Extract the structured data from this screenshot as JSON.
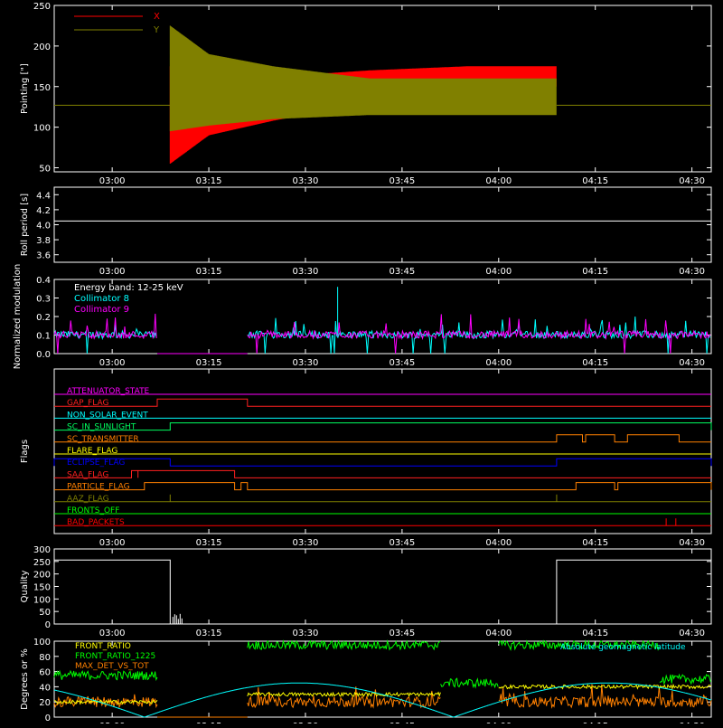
{
  "colors": {
    "background": "#000000",
    "axes": "#ffffff",
    "x_series": "#ff0000",
    "y_series": "#808000",
    "collimator8": "#00ffff",
    "collimator9": "#ff00ff",
    "front_ratio": "#ffff00",
    "front_ratio_1225": "#00ff00",
    "max_det_vs_tot": "#ff8000",
    "geomag": "#00ffff"
  },
  "time_ticks": [
    "03:00",
    "03:15",
    "03:30",
    "03:45",
    "04:00",
    "04:15",
    "04:30"
  ],
  "chart_data": [
    {
      "type": "line",
      "panel": "pointing",
      "ylabel": "Pointing [\"]",
      "ylim": [
        45,
        250
      ],
      "yticks": [
        "50",
        "100",
        "150",
        "200",
        "250"
      ],
      "legend": [
        "X",
        "Y"
      ],
      "x_range": [
        "02:51",
        "04:33"
      ],
      "series": [
        {
          "name": "X",
          "constant_before": 127,
          "start": "03:09",
          "end": "04:09",
          "envelope_low": [
            [
              9,
              55
            ],
            [
              15,
              90
            ],
            [
              25,
              108
            ],
            [
              40,
              130
            ],
            [
              55,
              148
            ],
            [
              69,
              150
            ]
          ],
          "envelope_high": [
            [
              9,
              175
            ],
            [
              15,
              165
            ],
            [
              25,
              162
            ],
            [
              40,
              170
            ],
            [
              55,
              175
            ],
            [
              69,
              175
            ]
          ]
        },
        {
          "name": "Y",
          "constant_before": 127,
          "start": "03:09",
          "end": "04:09",
          "envelope_low": [
            [
              9,
              95
            ],
            [
              15,
              102
            ],
            [
              25,
              110
            ],
            [
              40,
              115
            ],
            [
              55,
              115
            ],
            [
              69,
              115
            ]
          ],
          "envelope_high": [
            [
              9,
              225
            ],
            [
              15,
              190
            ],
            [
              25,
              175
            ],
            [
              40,
              160
            ],
            [
              55,
              160
            ],
            [
              69,
              160
            ]
          ]
        }
      ]
    },
    {
      "type": "line",
      "panel": "roll",
      "ylabel": "Roll period [s]",
      "ylim": [
        3.5,
        4.5
      ],
      "yticks": [
        "3.6",
        "3.8",
        "4.0",
        "4.2",
        "4.4"
      ],
      "series": [
        {
          "name": "",
          "value": 4.05
        }
      ]
    },
    {
      "type": "line",
      "panel": "modulation",
      "ylabel": "Normalized modulation",
      "ylim": [
        0,
        0.4
      ],
      "yticks": [
        "0.0",
        "0.1",
        "0.2",
        "0.3",
        "0.4"
      ],
      "annotations": [
        "Energy band: 12-25 keV",
        "Collimator 8",
        "Collimator 9"
      ],
      "series": [
        {
          "name": "Collimator 8",
          "baseline": 0.1,
          "segments": [
            [
              "02:51",
              "03:07"
            ],
            [
              "03:21",
              "04:33"
            ]
          ]
        },
        {
          "name": "Collimator 9",
          "baseline": 0.1,
          "segments": [
            [
              "02:51",
              "03:07"
            ],
            [
              "03:21",
              "04:33"
            ]
          ]
        }
      ]
    },
    {
      "type": "line",
      "panel": "flags",
      "ylabel": "Flags",
      "flags": [
        {
          "name": "ATTENUATOR_STATE",
          "color": "#ff00ff",
          "steps": []
        },
        {
          "name": "GAP_FLAG",
          "color": "#ff2020",
          "steps": [
            [
              "03:07",
              "03:21"
            ]
          ]
        },
        {
          "name": "NON_SOLAR_EVENT",
          "color": "#00ffff",
          "steps": []
        },
        {
          "name": "SC_IN_SUNLIGHT",
          "color": "#00ff60",
          "steps": [
            [
              "03:09",
              "04:33"
            ]
          ]
        },
        {
          "name": "SC_TRANSMITTER",
          "color": "#ff8000",
          "steps": [
            [
              "04:09",
              "04:13"
            ],
            [
              "04:13.5",
              "04:18"
            ],
            [
              "04:20",
              "04:28"
            ]
          ]
        },
        {
          "name": "FLARE_FLAG",
          "color": "#ffff00",
          "steps": []
        },
        {
          "name": "ECLIPSE_FLAG",
          "color": "#0000ff",
          "steps": [
            [
              "02:51",
              "03:09"
            ],
            [
              "04:09",
              "04:33"
            ]
          ]
        },
        {
          "name": "SAA_FLAG",
          "color": "#ff2020",
          "steps": [
            [
              "03:03",
              "03:04"
            ],
            [
              "03:04",
              "03:19"
            ]
          ]
        },
        {
          "name": "PARTICLE_FLAG",
          "color": "#ff8000",
          "steps": [
            [
              "03:05",
              "03:19"
            ],
            [
              "03:20",
              "03:21"
            ],
            [
              "04:12",
              "04:18"
            ],
            [
              "04:18.5",
              "04:33"
            ]
          ]
        },
        {
          "name": "AAZ_FLAG",
          "color": "#808000",
          "spikes": [
            "03:09",
            "04:09"
          ]
        },
        {
          "name": "FRONTS_OFF",
          "color": "#00ff00",
          "steps": []
        },
        {
          "name": "BAD_PACKETS",
          "color": "#ff0000",
          "spikes": [
            "04:26",
            "04:27.5"
          ]
        }
      ]
    },
    {
      "type": "line",
      "panel": "quality",
      "ylabel": "Quality",
      "ylim": [
        0,
        300
      ],
      "yticks": [
        "0",
        "50",
        "100",
        "150",
        "200",
        "250",
        "300"
      ],
      "series": [
        {
          "name": "",
          "levels": [
            [
              "02:51",
              "03:09",
              256
            ],
            [
              "03:09",
              "04:09",
              0
            ],
            [
              "04:09",
              "04:33",
              256
            ]
          ]
        }
      ]
    },
    {
      "type": "line",
      "panel": "ratios",
      "ylabel": "Degrees or %",
      "ylim": [
        0,
        100
      ],
      "yticks": [
        "0",
        "20",
        "40",
        "60",
        "80",
        "100"
      ],
      "legend": [
        "FRONT_RATIO",
        "FRONT_RATIO_1225",
        "MAX_DET_VS_TOT",
        "Absolute geomagnetic latitude"
      ],
      "series": [
        {
          "name": "FRONT_RATIO",
          "levels": [
            [
              "02:51",
              "03:07",
              20
            ],
            [
              "03:21",
              "03:51",
              30
            ],
            [
              "04:00",
              "04:33",
              40
            ]
          ]
        },
        {
          "name": "FRONT_RATIO_1225",
          "levels": [
            [
              "02:51",
              "03:07",
              55
            ],
            [
              "03:21",
              "03:51",
              95
            ],
            [
              "03:51",
              "04:00",
              45
            ],
            [
              "04:00",
              "04:25",
              95
            ],
            [
              "04:25",
              "04:33",
              50
            ]
          ]
        },
        {
          "name": "MAX_DET_VS_TOT",
          "levels": [
            [
              "02:51",
              "03:07",
              20
            ],
            [
              "03:21",
              "03:51",
              20
            ],
            [
              "04:00",
              "04:33",
              20
            ]
          ]
        },
        {
          "name": "Absolute geomagnetic latitude",
          "peaks": [
            [
              "03:29",
              45
            ],
            [
              "04:17",
              42
            ]
          ],
          "troughs": [
            [
              "03:05",
              0
            ],
            [
              "03:53",
              0
            ]
          ]
        }
      ]
    }
  ]
}
